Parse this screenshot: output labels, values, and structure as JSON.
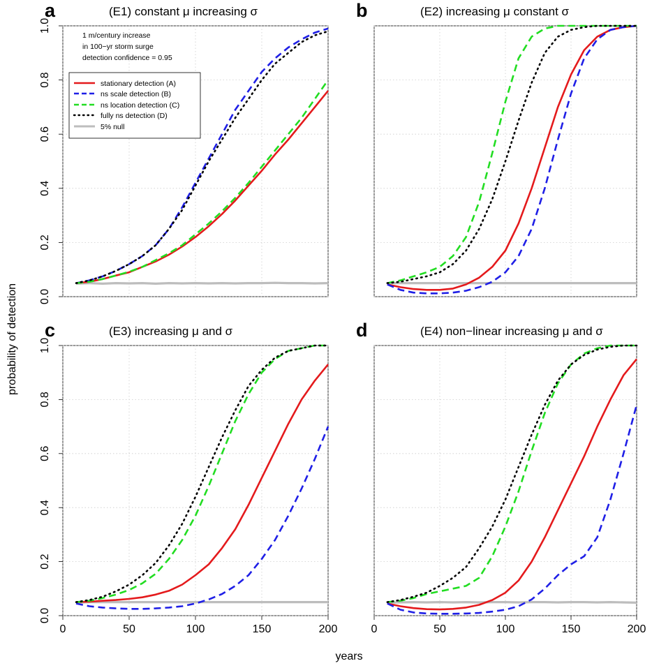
{
  "axes": {
    "ylabel": "probability of detection",
    "xlabel": "years"
  },
  "annotation": [
    "1  m/century increase",
    "in 100−yr storm surge",
    "detection confidence = 0.95"
  ],
  "legend": [
    {
      "label": "stationary detection (A)",
      "color": "#e41a1c",
      "dash": "solid"
    },
    {
      "label": "ns scale detection (B)",
      "color": "#1f1fe6",
      "dash": "dashed"
    },
    {
      "label": "ns location detection (C)",
      "color": "#22dd22",
      "dash": "dashed"
    },
    {
      "label": "fully ns detection (D)",
      "color": "#000000",
      "dash": "dotted"
    },
    {
      "label": "5% null",
      "color": "#bdbdbd",
      "dash": "solid"
    }
  ],
  "chart_data": [
    {
      "type": "line",
      "letter": "a",
      "title": "(E1) constant μ increasing σ",
      "x": [
        10,
        20,
        30,
        40,
        50,
        60,
        70,
        80,
        90,
        100,
        110,
        120,
        130,
        140,
        150,
        160,
        170,
        180,
        190,
        200
      ],
      "xlim": [
        0,
        200
      ],
      "ylim": [
        0,
        1
      ],
      "xticks": [
        "0",
        "50",
        "100",
        "150",
        "200"
      ],
      "yticks": [
        "0.0",
        "0.2",
        "0.4",
        "0.6",
        "0.8",
        "1.0"
      ],
      "series": [
        {
          "name": "stationary detection (A)",
          "values": [
            0.05,
            0.055,
            0.065,
            0.078,
            0.09,
            0.11,
            0.13,
            0.155,
            0.185,
            0.22,
            0.26,
            0.305,
            0.355,
            0.41,
            0.465,
            0.525,
            0.58,
            0.64,
            0.7,
            0.76
          ]
        },
        {
          "name": "ns scale detection (B)",
          "values": [
            0.05,
            0.06,
            0.075,
            0.095,
            0.12,
            0.15,
            0.19,
            0.25,
            0.33,
            0.42,
            0.51,
            0.6,
            0.69,
            0.76,
            0.83,
            0.88,
            0.92,
            0.95,
            0.975,
            0.99
          ]
        },
        {
          "name": "ns location detection (C)",
          "values": [
            0.05,
            0.055,
            0.065,
            0.078,
            0.092,
            0.11,
            0.135,
            0.16,
            0.19,
            0.23,
            0.27,
            0.315,
            0.365,
            0.42,
            0.48,
            0.54,
            0.6,
            0.66,
            0.73,
            0.8
          ]
        },
        {
          "name": "fully ns detection (D)",
          "values": [
            0.05,
            0.06,
            0.075,
            0.095,
            0.12,
            0.15,
            0.19,
            0.25,
            0.32,
            0.41,
            0.5,
            0.58,
            0.66,
            0.73,
            0.8,
            0.86,
            0.9,
            0.94,
            0.965,
            0.98
          ]
        },
        {
          "name": "5% null",
          "values": [
            0.048,
            0.05,
            0.048,
            0.05,
            0.049,
            0.05,
            0.048,
            0.05,
            0.049,
            0.05,
            0.049,
            0.05,
            0.049,
            0.05,
            0.05,
            0.051,
            0.05,
            0.05,
            0.049,
            0.05
          ]
        }
      ]
    },
    {
      "type": "line",
      "letter": "b",
      "title": "(E2) increasing μ constant σ",
      "x": [
        10,
        20,
        30,
        40,
        50,
        60,
        70,
        80,
        90,
        100,
        110,
        120,
        130,
        140,
        150,
        160,
        170,
        180,
        190,
        200
      ],
      "xlim": [
        0,
        200
      ],
      "ylim": [
        0,
        1
      ],
      "xticks": [
        "0",
        "50",
        "100",
        "150",
        "200"
      ],
      "yticks": [
        "0.0",
        "0.2",
        "0.4",
        "0.6",
        "0.8",
        "1.0"
      ],
      "series": [
        {
          "name": "stationary detection (A)",
          "values": [
            0.045,
            0.035,
            0.028,
            0.025,
            0.025,
            0.03,
            0.045,
            0.07,
            0.11,
            0.17,
            0.27,
            0.4,
            0.55,
            0.7,
            0.82,
            0.91,
            0.96,
            0.985,
            0.995,
            1.0
          ]
        },
        {
          "name": "ns scale detection (B)",
          "values": [
            0.045,
            0.025,
            0.015,
            0.012,
            0.012,
            0.015,
            0.022,
            0.035,
            0.055,
            0.09,
            0.15,
            0.25,
            0.4,
            0.58,
            0.75,
            0.88,
            0.95,
            0.985,
            0.995,
            1.0
          ]
        },
        {
          "name": "ns location detection (C)",
          "values": [
            0.05,
            0.06,
            0.075,
            0.09,
            0.11,
            0.15,
            0.22,
            0.35,
            0.53,
            0.72,
            0.88,
            0.96,
            0.99,
            1.0,
            1.0,
            1.0,
            1.0,
            1.0,
            1.0,
            1.0
          ]
        },
        {
          "name": "fully ns detection (D)",
          "values": [
            0.05,
            0.055,
            0.065,
            0.075,
            0.09,
            0.12,
            0.17,
            0.25,
            0.36,
            0.5,
            0.65,
            0.79,
            0.9,
            0.96,
            0.985,
            0.995,
            1.0,
            1.0,
            1.0,
            1.0
          ]
        },
        {
          "name": "5% null",
          "values": [
            0.05,
            0.05,
            0.05,
            0.05,
            0.05,
            0.05,
            0.05,
            0.05,
            0.05,
            0.05,
            0.05,
            0.05,
            0.05,
            0.05,
            0.05,
            0.05,
            0.05,
            0.05,
            0.05,
            0.05
          ]
        }
      ]
    },
    {
      "type": "line",
      "letter": "c",
      "title": "(E3) increasing μ and σ",
      "x": [
        10,
        20,
        30,
        40,
        50,
        60,
        70,
        80,
        90,
        100,
        110,
        120,
        130,
        140,
        150,
        160,
        170,
        180,
        190,
        200
      ],
      "xlim": [
        0,
        200
      ],
      "ylim": [
        0,
        1
      ],
      "xticks": [
        "0",
        "50",
        "100",
        "150",
        "200"
      ],
      "yticks": [
        "0.0",
        "0.2",
        "0.4",
        "0.6",
        "0.8",
        "1.0"
      ],
      "series": [
        {
          "name": "stationary detection (A)",
          "values": [
            0.05,
            0.052,
            0.055,
            0.058,
            0.062,
            0.068,
            0.078,
            0.092,
            0.115,
            0.15,
            0.19,
            0.25,
            0.32,
            0.41,
            0.51,
            0.61,
            0.71,
            0.8,
            0.87,
            0.93
          ]
        },
        {
          "name": "ns scale detection (B)",
          "values": [
            0.045,
            0.035,
            0.03,
            0.027,
            0.025,
            0.025,
            0.027,
            0.03,
            0.035,
            0.045,
            0.06,
            0.08,
            0.11,
            0.15,
            0.21,
            0.28,
            0.37,
            0.47,
            0.58,
            0.7
          ]
        },
        {
          "name": "ns location detection (C)",
          "values": [
            0.05,
            0.055,
            0.065,
            0.078,
            0.095,
            0.12,
            0.155,
            0.21,
            0.28,
            0.37,
            0.48,
            0.6,
            0.72,
            0.82,
            0.9,
            0.95,
            0.98,
            0.99,
            1.0,
            1.0
          ]
        },
        {
          "name": "fully ns detection (D)",
          "values": [
            0.05,
            0.058,
            0.07,
            0.09,
            0.115,
            0.15,
            0.195,
            0.26,
            0.34,
            0.44,
            0.55,
            0.66,
            0.76,
            0.85,
            0.91,
            0.955,
            0.98,
            0.99,
            1.0,
            1.0
          ]
        },
        {
          "name": "5% null",
          "values": [
            0.048,
            0.05,
            0.05,
            0.05,
            0.05,
            0.05,
            0.05,
            0.05,
            0.05,
            0.05,
            0.05,
            0.05,
            0.05,
            0.05,
            0.05,
            0.05,
            0.05,
            0.05,
            0.05,
            0.05
          ]
        }
      ]
    },
    {
      "type": "line",
      "letter": "d",
      "title": "(E4) non−linear increasing μ and σ",
      "x": [
        10,
        20,
        30,
        40,
        50,
        60,
        70,
        80,
        90,
        100,
        110,
        120,
        130,
        140,
        150,
        160,
        170,
        180,
        190,
        200
      ],
      "xlim": [
        0,
        200
      ],
      "ylim": [
        0,
        1
      ],
      "xticks": [
        "0",
        "50",
        "100",
        "150",
        "200"
      ],
      "yticks": [
        "0.0",
        "0.2",
        "0.4",
        "0.6",
        "0.8",
        "1.0"
      ],
      "series": [
        {
          "name": "stationary detection (A)",
          "values": [
            0.045,
            0.035,
            0.028,
            0.024,
            0.023,
            0.025,
            0.03,
            0.04,
            0.058,
            0.085,
            0.13,
            0.2,
            0.29,
            0.39,
            0.49,
            0.59,
            0.7,
            0.8,
            0.89,
            0.95
          ]
        },
        {
          "name": "ns scale detection (B)",
          "values": [
            0.045,
            0.022,
            0.012,
            0.008,
            0.007,
            0.007,
            0.008,
            0.01,
            0.015,
            0.022,
            0.035,
            0.06,
            0.1,
            0.15,
            0.19,
            0.22,
            0.29,
            0.43,
            0.6,
            0.78
          ]
        },
        {
          "name": "ns location detection (C)",
          "values": [
            0.05,
            0.055,
            0.065,
            0.08,
            0.09,
            0.1,
            0.11,
            0.14,
            0.22,
            0.33,
            0.46,
            0.61,
            0.75,
            0.86,
            0.93,
            0.97,
            0.99,
            1.0,
            1.0,
            1.0
          ]
        },
        {
          "name": "fully ns detection (D)",
          "values": [
            0.05,
            0.058,
            0.07,
            0.085,
            0.11,
            0.14,
            0.18,
            0.25,
            0.33,
            0.43,
            0.55,
            0.67,
            0.78,
            0.87,
            0.93,
            0.965,
            0.985,
            0.995,
            1.0,
            1.0
          ]
        },
        {
          "name": "5% null",
          "values": [
            0.048,
            0.049,
            0.05,
            0.049,
            0.05,
            0.049,
            0.05,
            0.049,
            0.05,
            0.05,
            0.049,
            0.05,
            0.05,
            0.049,
            0.05,
            0.05,
            0.049,
            0.05,
            0.049,
            0.048
          ]
        }
      ]
    }
  ]
}
